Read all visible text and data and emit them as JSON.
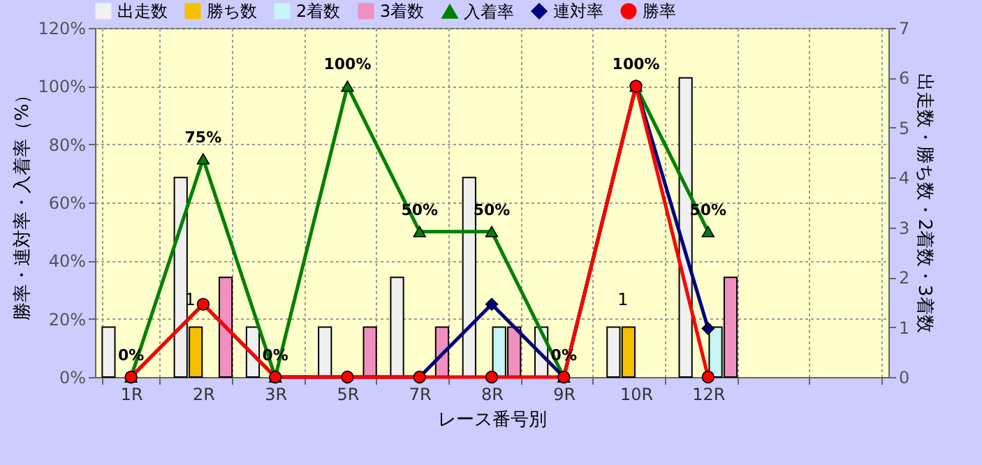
{
  "chart_data": {
    "type": "bar",
    "xlabel": "レース番号別",
    "ylabel": "勝率・連対率・入着率（%）",
    "y2label": "出走数・勝ち数・2着数・3着数",
    "categories": [
      "1R",
      "2R",
      "3R",
      "5R",
      "7R",
      "8R",
      "9R",
      "10R",
      "12R",
      null,
      null
    ],
    "series": [
      {
        "name": "出走数",
        "axis": "y2",
        "color": "#f0f0f0",
        "values": [
          1,
          4,
          1,
          1,
          2,
          4,
          1,
          1,
          6,
          null,
          null
        ]
      },
      {
        "name": "勝ち数",
        "axis": "y2",
        "color": "#f5c000",
        "values": [
          0,
          1,
          0,
          0,
          0,
          0,
          0,
          1,
          0,
          null,
          null
        ],
        "value_labels": [
          null,
          "1",
          null,
          null,
          null,
          null,
          null,
          "1",
          null,
          null,
          null
        ]
      },
      {
        "name": "2着数",
        "axis": "y2",
        "color": "#c8f5f5",
        "values": [
          0,
          0,
          0,
          0,
          0,
          1,
          0,
          0,
          1,
          null,
          null
        ]
      },
      {
        "name": "3着数",
        "axis": "y2",
        "color": "#f090c0",
        "values": [
          0,
          2,
          0,
          1,
          1,
          1,
          0,
          0,
          2,
          null,
          null
        ]
      },
      {
        "name": "入着率",
        "type": "line",
        "marker": "triangle",
        "color": "#008000",
        "values": [
          0,
          75,
          0,
          100,
          50,
          50,
          0,
          100,
          50,
          null,
          null
        ],
        "value_labels": [
          "0%",
          "75%",
          "0%",
          "100%",
          "50%",
          "50%",
          "0%",
          "100%",
          "50%",
          null,
          null
        ]
      },
      {
        "name": "連対率",
        "type": "line",
        "marker": "diamond",
        "color": "#000080",
        "values": [
          0,
          25,
          0,
          0,
          0,
          25,
          0,
          100,
          16.7,
          null,
          null
        ]
      },
      {
        "name": "勝率",
        "type": "line",
        "marker": "circle",
        "color": "#ff0000",
        "values": [
          0,
          25,
          0,
          0,
          0,
          0,
          0,
          100,
          0,
          null,
          null
        ]
      }
    ],
    "ylim": [
      0,
      120
    ],
    "yticks": [
      {
        "value": 0,
        "label": "0%"
      },
      {
        "value": 20,
        "label": "20%"
      },
      {
        "value": 40,
        "label": "40%"
      },
      {
        "value": 60,
        "label": "60%"
      },
      {
        "value": 80,
        "label": "80%"
      },
      {
        "value": 100,
        "label": "100%"
      },
      {
        "value": 120,
        "label": "120%"
      }
    ],
    "y2lim": [
      0,
      7
    ],
    "y2ticks": [
      0,
      1,
      2,
      3,
      4,
      5,
      6,
      7
    ],
    "grid": true,
    "legend": "top"
  }
}
